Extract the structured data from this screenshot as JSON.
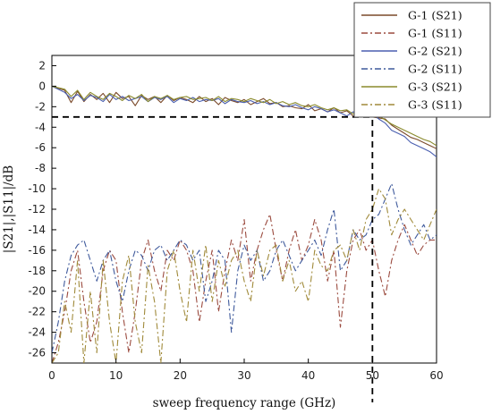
{
  "chart_data": {
    "type": "line",
    "title": "",
    "xlabel": "sweep frequency range (GHz)",
    "ylabel": "|S21|,|S11|/dB",
    "xlim": [
      0,
      60
    ],
    "ylim": [
      -27,
      3
    ],
    "xticks": [
      "0",
      "10",
      "20",
      "30",
      "40",
      "50",
      "60"
    ],
    "yticks": [
      "2",
      "0",
      "-2",
      "-4",
      "-6",
      "-8",
      "-10",
      "-12",
      "-14",
      "-16",
      "-18",
      "-20",
      "-22",
      "-24",
      "-26"
    ],
    "grid": false,
    "legend": "top-right",
    "reference_lines": {
      "y": -3,
      "x": 50,
      "style": "dashed"
    },
    "series": [
      {
        "name": "G-1 (S21)",
        "color": "#7b4a2a",
        "dash": "solid",
        "x": [
          0,
          2,
          3,
          4,
          5,
          6,
          7,
          8,
          9,
          10,
          11,
          12,
          13,
          14,
          15,
          16,
          17,
          18,
          19,
          20,
          21,
          22,
          23,
          24,
          25,
          26,
          27,
          28,
          29,
          30,
          31,
          32,
          33,
          34,
          35,
          36,
          37,
          38,
          39,
          40,
          41,
          42,
          43,
          44,
          45,
          46,
          47,
          48,
          49,
          50,
          51,
          52,
          53,
          54,
          55,
          56,
          57,
          58,
          59,
          60
        ],
        "y": [
          0,
          -0.4,
          -1.6,
          -0.5,
          -1.5,
          -0.8,
          -1.3,
          -0.7,
          -1.6,
          -0.6,
          -1.2,
          -1.0,
          -1.9,
          -0.9,
          -1.3,
          -1.0,
          -1.6,
          -0.9,
          -1.4,
          -1.1,
          -1.3,
          -1.6,
          -1.0,
          -1.5,
          -1.2,
          -1.8,
          -1.1,
          -1.4,
          -1.6,
          -1.3,
          -1.8,
          -1.5,
          -1.2,
          -1.7,
          -1.6,
          -2.0,
          -1.9,
          -2.1,
          -2.2,
          -1.8,
          -2.4,
          -2.2,
          -2.5,
          -2.1,
          -2.6,
          -2.4,
          -2.9,
          -3.0,
          -2.6,
          -3.0,
          -3.1,
          -3.2,
          -3.8,
          -4.2,
          -4.6,
          -5.0,
          -5.2,
          -5.5,
          -5.8,
          -6.1
        ]
      },
      {
        "name": "G-1 (S11)",
        "color": "#9b4b3f",
        "dash": "dashdot",
        "x": [
          0,
          1,
          2,
          3,
          4,
          5,
          6,
          7,
          8,
          9,
          10,
          11,
          12,
          13,
          14,
          15,
          16,
          17,
          18,
          19,
          20,
          21,
          22,
          23,
          24,
          25,
          26,
          27,
          28,
          29,
          30,
          31,
          32,
          33,
          34,
          35,
          36,
          37,
          38,
          39,
          40,
          41,
          42,
          43,
          44,
          45,
          46,
          47,
          48,
          49,
          50,
          51,
          52,
          53,
          54,
          55,
          56,
          57,
          58,
          59,
          60
        ],
        "y": [
          -27,
          -25,
          -22,
          -18,
          -16,
          -21,
          -25,
          -23,
          -18,
          -16,
          -17,
          -22,
          -26,
          -22,
          -17,
          -15,
          -18,
          -20,
          -16,
          -17,
          -15,
          -16,
          -18,
          -23,
          -19,
          -16,
          -22,
          -18,
          -15,
          -17,
          -13,
          -19,
          -16,
          -14,
          -12.5,
          -16,
          -19,
          -16,
          -14,
          -17,
          -15.5,
          -13,
          -15,
          -19,
          -16,
          -23.5,
          -18,
          -15,
          -14,
          -16,
          -15,
          -18,
          -20.5,
          -17,
          -15,
          -13.5,
          -15,
          -16.5,
          -15.5,
          -15,
          -15
        ]
      },
      {
        "name": "G-2 (S21)",
        "color": "#4a5fb0",
        "dash": "solid",
        "x": [
          0,
          2,
          3,
          4,
          5,
          6,
          7,
          8,
          9,
          10,
          11,
          12,
          13,
          14,
          15,
          16,
          17,
          18,
          19,
          20,
          21,
          22,
          23,
          24,
          25,
          26,
          27,
          28,
          29,
          30,
          31,
          32,
          33,
          34,
          35,
          36,
          37,
          38,
          39,
          40,
          41,
          42,
          43,
          44,
          45,
          46,
          47,
          48,
          49,
          50,
          51,
          52,
          53,
          54,
          55,
          56,
          57,
          58,
          59,
          60
        ],
        "y": [
          0,
          -0.6,
          -1.2,
          -0.8,
          -1.4,
          -0.9,
          -1.1,
          -1.5,
          -0.8,
          -1.3,
          -1.0,
          -1.4,
          -1.2,
          -1.0,
          -1.5,
          -1.1,
          -1.3,
          -1.0,
          -1.6,
          -1.2,
          -1.4,
          -1.1,
          -1.5,
          -1.3,
          -1.4,
          -1.2,
          -1.7,
          -1.3,
          -1.5,
          -1.6,
          -1.4,
          -1.7,
          -1.5,
          -1.8,
          -1.6,
          -1.9,
          -2.0,
          -1.8,
          -2.1,
          -2.3,
          -2.0,
          -2.2,
          -2.5,
          -2.3,
          -2.6,
          -2.9,
          -2.5,
          -2.8,
          -3.0,
          -2.7,
          -3.2,
          -3.6,
          -4.3,
          -4.6,
          -4.9,
          -5.5,
          -5.8,
          -6.1,
          -6.4,
          -6.9
        ]
      },
      {
        "name": "G-2 (S11)",
        "color": "#3f5a9c",
        "dash": "dashdot",
        "x": [
          0,
          1,
          2,
          3,
          4,
          5,
          6,
          7,
          8,
          9,
          10,
          11,
          12,
          13,
          14,
          15,
          16,
          17,
          18,
          19,
          20,
          21,
          22,
          23,
          24,
          25,
          26,
          27,
          28,
          29,
          30,
          31,
          32,
          33,
          34,
          35,
          36,
          37,
          38,
          39,
          40,
          41,
          42,
          43,
          44,
          45,
          46,
          47,
          48,
          49,
          50,
          51,
          52,
          53,
          54,
          55,
          56,
          57,
          58,
          59,
          60
        ],
        "y": [
          -26,
          -23,
          -19,
          -16.5,
          -15.5,
          -15,
          -17,
          -19,
          -17,
          -16,
          -19,
          -21,
          -18,
          -16,
          -16.5,
          -18,
          -16,
          -15.5,
          -17,
          -16,
          -15,
          -15.5,
          -17,
          -16,
          -21,
          -19,
          -16,
          -17,
          -24,
          -18,
          -15.5,
          -17,
          -16,
          -19,
          -18,
          -16,
          -15,
          -16.5,
          -18,
          -17,
          -16,
          -15,
          -16.5,
          -14,
          -12,
          -18,
          -17,
          -14,
          -15,
          -14.5,
          -13,
          -12.5,
          -11,
          -9.5,
          -12,
          -14,
          -15.5,
          -14.5,
          -13.5,
          -15,
          -14.5
        ]
      },
      {
        "name": "G-3 (S21)",
        "color": "#8a8a2c",
        "dash": "solid",
        "x": [
          0,
          2,
          3,
          4,
          5,
          6,
          7,
          8,
          9,
          10,
          11,
          12,
          13,
          14,
          15,
          16,
          17,
          18,
          19,
          20,
          21,
          22,
          23,
          24,
          25,
          26,
          27,
          28,
          29,
          30,
          31,
          32,
          33,
          34,
          35,
          36,
          37,
          38,
          39,
          40,
          41,
          42,
          43,
          44,
          45,
          46,
          47,
          48,
          49,
          50,
          51,
          52,
          53,
          54,
          55,
          56,
          57,
          58,
          59,
          60
        ],
        "y": [
          0,
          -0.3,
          -1.0,
          -0.4,
          -1.3,
          -0.6,
          -1.0,
          -1.3,
          -0.7,
          -1.0,
          -1.4,
          -0.9,
          -1.2,
          -0.8,
          -1.5,
          -1.0,
          -1.2,
          -0.9,
          -1.3,
          -1.1,
          -1.0,
          -1.3,
          -1.2,
          -1.1,
          -1.4,
          -1.0,
          -1.5,
          -1.2,
          -1.3,
          -1.5,
          -1.2,
          -1.4,
          -1.6,
          -1.3,
          -1.7,
          -1.5,
          -1.8,
          -1.6,
          -1.9,
          -2.0,
          -1.8,
          -2.1,
          -2.3,
          -2.1,
          -2.4,
          -2.3,
          -2.7,
          -2.5,
          -2.8,
          -2.6,
          -2.9,
          -3.3,
          -3.7,
          -4.0,
          -4.3,
          -4.6,
          -4.9,
          -5.2,
          -5.4,
          -5.8
        ]
      },
      {
        "name": "G-3 (S11)",
        "color": "#a08a3a",
        "dash": "dashdot",
        "x": [
          0,
          1,
          2,
          3,
          4,
          5,
          6,
          7,
          8,
          9,
          10,
          11,
          12,
          13,
          14,
          15,
          16,
          17,
          18,
          19,
          20,
          21,
          22,
          23,
          24,
          25,
          26,
          27,
          28,
          29,
          30,
          31,
          32,
          33,
          34,
          35,
          36,
          37,
          38,
          39,
          40,
          41,
          42,
          43,
          44,
          45,
          46,
          47,
          48,
          49,
          50,
          51,
          52,
          53,
          54,
          55,
          56,
          57,
          58,
          59,
          60
        ],
        "y": [
          -27,
          -26,
          -21,
          -24,
          -17,
          -27,
          -20,
          -26,
          -17,
          -23,
          -27,
          -19,
          -16.5,
          -23,
          -26,
          -17.5,
          -21,
          -27,
          -18,
          -16,
          -20,
          -23,
          -16,
          -20,
          -15.5,
          -21,
          -17,
          -19.5,
          -17,
          -16,
          -19,
          -21,
          -16,
          -18.5,
          -16,
          -15.5,
          -19,
          -17,
          -20,
          -19,
          -21,
          -16,
          -17.5,
          -18,
          -16,
          -15.5,
          -17,
          -14,
          -16,
          -13,
          -12,
          -10,
          -11,
          -14.5,
          -13,
          -12,
          -13,
          -14,
          -15,
          -13.5,
          -12
        ]
      }
    ]
  }
}
